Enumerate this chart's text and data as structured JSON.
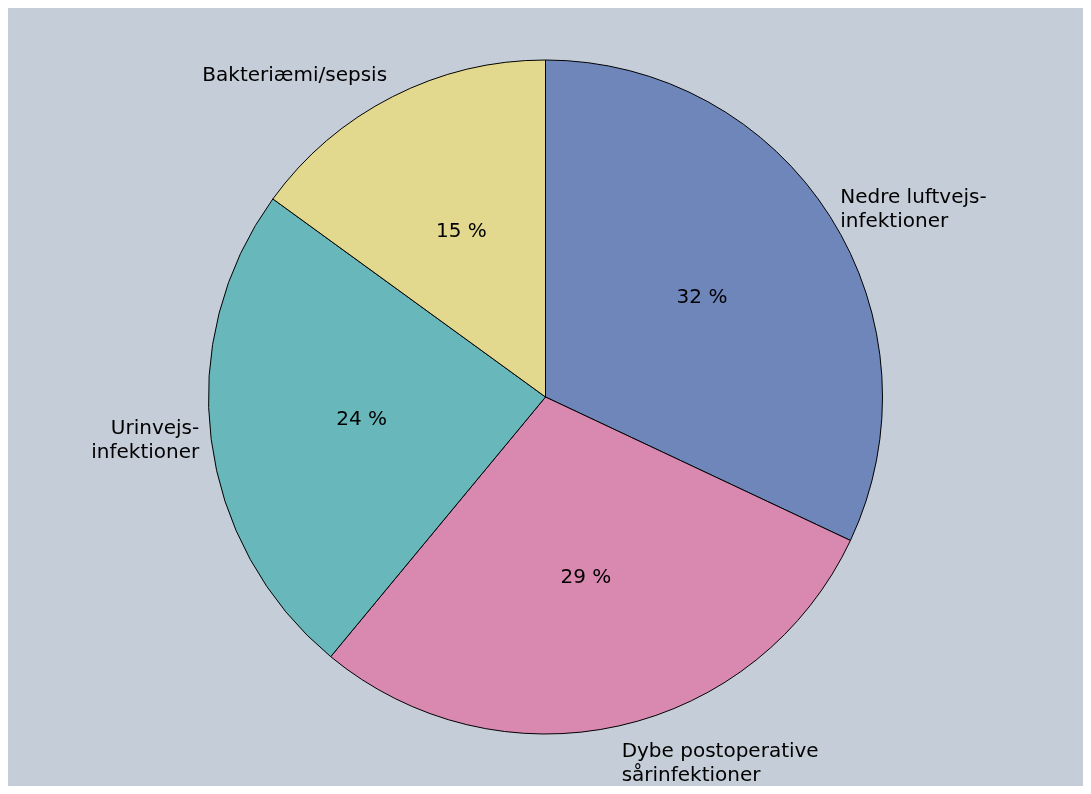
{
  "chart_data": {
    "type": "pie",
    "categories": [
      "Nedre luftvejs-\ninfektioner",
      "Dybe postoperative\nsårinfektioner",
      "Urinvejs-\ninfektioner",
      "Bakteriæmi/sepsis"
    ],
    "values": [
      32,
      29,
      24,
      15
    ],
    "colors": [
      "#6f86bb",
      "#d988b0",
      "#68b8bb",
      "#e3d98e"
    ],
    "value_labels": [
      "32 %",
      "29 %",
      "24 %",
      "15 %"
    ],
    "legend": false
  }
}
